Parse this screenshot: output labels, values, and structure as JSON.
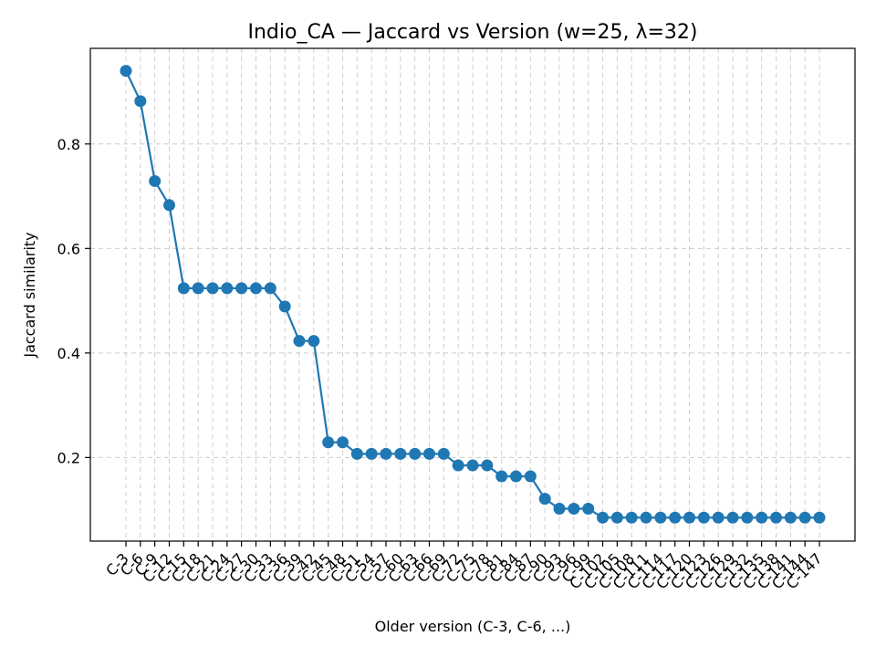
{
  "chart_data": {
    "type": "line",
    "title": "Indio_CA — Jaccard vs Version (w=25, λ=32)",
    "xlabel": "Older version (C-3, C-6, ...)",
    "ylabel": "Jaccard similarity",
    "color": "#1f77b4",
    "grid": true,
    "categories": [
      "C-3",
      "C-6",
      "C-9",
      "C-12",
      "C-15",
      "C-18",
      "C-21",
      "C-24",
      "C-27",
      "C-30",
      "C-33",
      "C-36",
      "C-39",
      "C-42",
      "C-45",
      "C-48",
      "C-51",
      "C-54",
      "C-57",
      "C-60",
      "C-63",
      "C-66",
      "C-69",
      "C-72",
      "C-75",
      "C-78",
      "C-81",
      "C-84",
      "C-87",
      "C-90",
      "C-93",
      "C-96",
      "C-99",
      "C-102",
      "C-105",
      "C-108",
      "C-111",
      "C-114",
      "C-117",
      "C-120",
      "C-123",
      "C-126",
      "C-129",
      "C-132",
      "C-135",
      "C-138",
      "C-141",
      "C-144",
      "C-147"
    ],
    "values": [
      0.94,
      0.882,
      0.729,
      0.683,
      0.524,
      0.524,
      0.524,
      0.524,
      0.524,
      0.524,
      0.524,
      0.489,
      0.423,
      0.423,
      0.229,
      0.229,
      0.207,
      0.207,
      0.207,
      0.207,
      0.207,
      0.207,
      0.207,
      0.185,
      0.185,
      0.185,
      0.164,
      0.164,
      0.164,
      0.121,
      0.102,
      0.102,
      0.102,
      0.085,
      0.085,
      0.085,
      0.085,
      0.085,
      0.085,
      0.085,
      0.085,
      0.085,
      0.085,
      0.085,
      0.085,
      0.085,
      0.085,
      0.085,
      0.085
    ],
    "yticks": [
      "0.2",
      "0.4",
      "0.6",
      "0.8"
    ],
    "ylim": [
      0.04,
      0.983
    ]
  }
}
